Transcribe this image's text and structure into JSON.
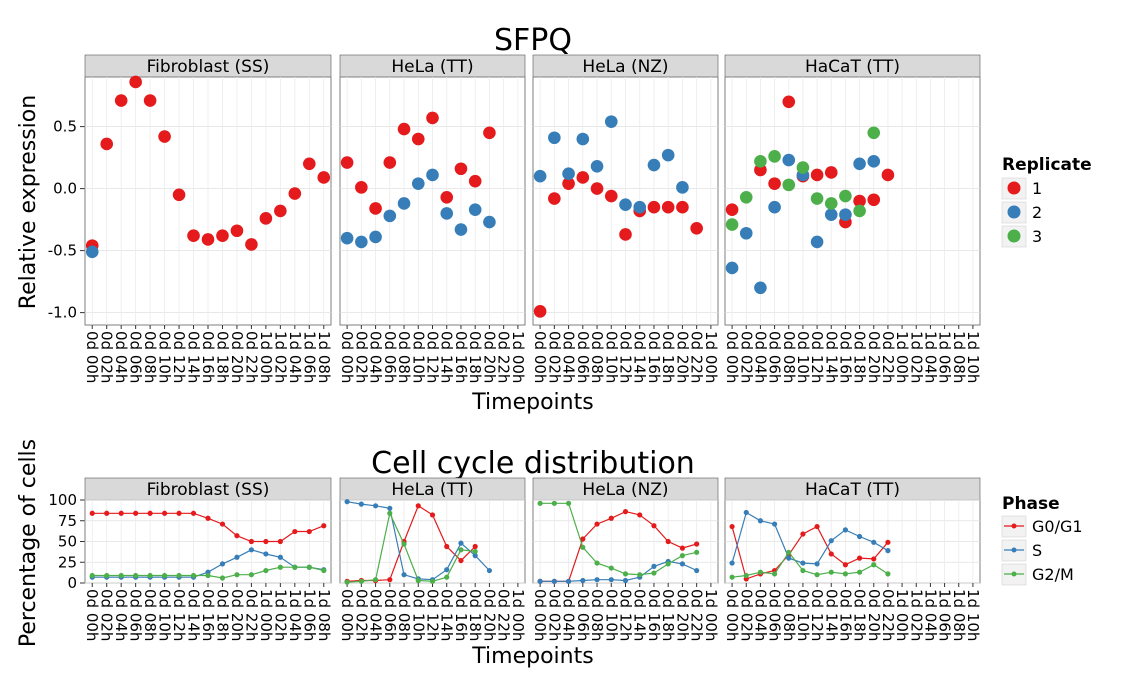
{
  "figure_title": "SFPQ",
  "chart_data": [
    {
      "type": "scatter",
      "title": "SFPQ",
      "xlabel": "Timepoints",
      "ylabel": "Relative expression",
      "ylim": [
        -1.1,
        0.9
      ],
      "yticks": [
        0.5,
        0.0,
        -0.5,
        -1.0
      ],
      "ytick_labels": [
        "0.5",
        "0.0",
        "-0.5",
        "-1.0"
      ],
      "legend": {
        "title": "Replicate",
        "position": "right",
        "entries": [
          {
            "label": "1",
            "color": "#e41a1c"
          },
          {
            "label": "2",
            "color": "#377eb8"
          },
          {
            "label": "3",
            "color": "#4daf4a"
          }
        ]
      },
      "grid": true,
      "panels": [
        {
          "label": "Fibroblast (SS)",
          "x": [
            "0d 00h",
            "0d 02h",
            "0d 04h",
            "0d 06h",
            "0d 08h",
            "0d 10h",
            "0d 12h",
            "0d 14h",
            "0d 16h",
            "0d 18h",
            "0d 20h",
            "0d 22h",
            "1d 00h",
            "1d 02h",
            "1d 04h",
            "1d 06h",
            "1d 08h"
          ],
          "series": [
            {
              "name": "1",
              "values": [
                -0.46,
                0.36,
                0.71,
                0.86,
                0.71,
                0.42,
                -0.05,
                -0.38,
                -0.41,
                -0.38,
                -0.34,
                -0.45,
                -0.24,
                -0.18,
                -0.04,
                0.2,
                0.09
              ]
            },
            {
              "name": "2",
              "values": [
                -0.51,
                null,
                null,
                null,
                null,
                null,
                null,
                null,
                null,
                null,
                null,
                null,
                null,
                null,
                null,
                null,
                null
              ]
            }
          ]
        },
        {
          "label": "HeLa (TT)",
          "x": [
            "0d 00h",
            "0d 02h",
            "0d 04h",
            "0d 06h",
            "0d 08h",
            "0d 10h",
            "0d 12h",
            "0d 14h",
            "0d 16h",
            "0d 18h",
            "0d 20h",
            "0d 22h",
            "1d 00h"
          ],
          "series": [
            {
              "name": "1",
              "values": [
                0.21,
                0.01,
                -0.16,
                0.21,
                0.48,
                0.4,
                0.57,
                -0.07,
                0.16,
                0.06,
                0.45,
                null,
                null
              ]
            },
            {
              "name": "2",
              "values": [
                -0.4,
                -0.43,
                -0.39,
                -0.22,
                -0.12,
                0.04,
                0.11,
                -0.2,
                -0.33,
                -0.17,
                -0.27,
                null,
                null
              ]
            }
          ]
        },
        {
          "label": "HeLa (NZ)",
          "x": [
            "0d 00h",
            "0d 02h",
            "0d 04h",
            "0d 06h",
            "0d 08h",
            "0d 10h",
            "0d 12h",
            "0d 14h",
            "0d 16h",
            "0d 18h",
            "0d 20h",
            "0d 22h",
            "1d 00h"
          ],
          "series": [
            {
              "name": "1",
              "values": [
                -0.99,
                -0.08,
                0.04,
                0.09,
                0.0,
                -0.06,
                -0.37,
                -0.18,
                -0.15,
                -0.15,
                -0.15,
                -0.32,
                null
              ]
            },
            {
              "name": "2",
              "values": [
                0.1,
                0.41,
                0.12,
                0.4,
                0.18,
                0.54,
                -0.13,
                -0.15,
                0.19,
                0.27,
                0.01,
                null,
                null
              ]
            }
          ]
        },
        {
          "label": "HaCaT (TT)",
          "x": [
            "0d 00h",
            "0d 02h",
            "0d 04h",
            "0d 06h",
            "0d 08h",
            "0d 10h",
            "0d 12h",
            "0d 14h",
            "0d 16h",
            "0d 18h",
            "0d 20h",
            "0d 22h",
            "1d 00h",
            "1d 02h",
            "1d 04h",
            "1d 06h",
            "1d 08h",
            "1d 10h"
          ],
          "series": [
            {
              "name": "1",
              "values": [
                -0.17,
                null,
                0.15,
                0.04,
                0.7,
                0.1,
                0.11,
                0.13,
                -0.27,
                -0.1,
                -0.09,
                0.11,
                null,
                null,
                null,
                null,
                null,
                null
              ]
            },
            {
              "name": "2",
              "values": [
                -0.64,
                -0.36,
                -0.8,
                -0.15,
                0.23,
                0.11,
                -0.43,
                -0.21,
                -0.21,
                0.2,
                0.22,
                null,
                null,
                null,
                null,
                null,
                null,
                null
              ]
            },
            {
              "name": "3",
              "values": [
                -0.29,
                -0.07,
                0.22,
                0.26,
                0.03,
                0.17,
                -0.08,
                -0.12,
                -0.06,
                -0.18,
                0.45,
                null,
                null,
                null,
                null,
                null,
                null,
                null
              ]
            }
          ]
        }
      ]
    },
    {
      "type": "line",
      "title": "Cell cycle distribution",
      "xlabel": "Timepoints",
      "ylabel": "Percentage of cells",
      "ylim": [
        0,
        100
      ],
      "yticks": [
        100,
        75,
        50,
        25,
        0
      ],
      "ytick_labels": [
        "100",
        "75",
        "50",
        "25",
        "0"
      ],
      "legend": {
        "title": "Phase",
        "position": "right",
        "entries": [
          {
            "label": "G0/G1",
            "color": "#e41a1c"
          },
          {
            "label": "S",
            "color": "#377eb8"
          },
          {
            "label": "G2/M",
            "color": "#4daf4a"
          }
        ]
      },
      "grid": true,
      "panels": [
        {
          "label": "Fibroblast (SS)",
          "x": [
            "0d 00h",
            "0d 02h",
            "0d 04h",
            "0d 06h",
            "0d 08h",
            "0d 10h",
            "0d 12h",
            "0d 14h",
            "0d 16h",
            "0d 18h",
            "0d 20h",
            "0d 22h",
            "1d 00h",
            "1d 02h",
            "1d 04h",
            "1d 06h",
            "1d 08h"
          ],
          "series": [
            {
              "name": "G0/G1",
              "values": [
                84,
                84,
                84,
                84,
                84,
                84,
                84,
                84,
                78,
                71,
                57,
                50,
                50,
                50,
                62,
                62,
                69
              ]
            },
            {
              "name": "S",
              "values": [
                7,
                7,
                7,
                7,
                7,
                7,
                7,
                7,
                13,
                23,
                31,
                40,
                35,
                31,
                19,
                19,
                16
              ]
            },
            {
              "name": "G2/M",
              "values": [
                9,
                9,
                9,
                9,
                9,
                9,
                9,
                9,
                9,
                6,
                10,
                10,
                15,
                19,
                19,
                19,
                15
              ]
            }
          ]
        },
        {
          "label": "HeLa (TT)",
          "x": [
            "0d 00h",
            "0d 02h",
            "0d 04h",
            "0d 06h",
            "0d 08h",
            "0d 10h",
            "0d 12h",
            "0d 14h",
            "0d 16h",
            "0d 18h",
            "0d 20h",
            "0d 22h",
            "1d 00h"
          ],
          "series": [
            {
              "name": "G0/G1",
              "values": [
                2,
                3,
                3,
                4,
                50,
                93,
                82,
                44,
                27,
                44,
                null,
                null,
                null
              ]
            },
            {
              "name": "S",
              "values": [
                98,
                95,
                93,
                90,
                10,
                5,
                4,
                16,
                48,
                33,
                15,
                null,
                null
              ]
            },
            {
              "name": "G2/M",
              "values": [
                1,
                2,
                4,
                84,
                47,
                3,
                2,
                7,
                40,
                38,
                null,
                null,
                null
              ]
            }
          ]
        },
        {
          "label": "HeLa (NZ)",
          "x": [
            "0d 00h",
            "0d 02h",
            "0d 04h",
            "0d 06h",
            "0d 08h",
            "0d 10h",
            "0d 12h",
            "0d 14h",
            "0d 16h",
            "0d 18h",
            "0d 20h",
            "0d 22h",
            "1d 00h"
          ],
          "series": [
            {
              "name": "G0/G1",
              "values": [
                2,
                2,
                2,
                53,
                71,
                78,
                86,
                82,
                69,
                50,
                42,
                47,
                null
              ]
            },
            {
              "name": "S",
              "values": [
                2,
                2,
                2,
                3,
                4,
                4,
                3,
                7,
                20,
                26,
                23,
                15,
                null
              ]
            },
            {
              "name": "G2/M",
              "values": [
                96,
                96,
                96,
                43,
                24,
                18,
                11,
                10,
                12,
                23,
                33,
                37,
                null
              ]
            }
          ]
        },
        {
          "label": "HaCaT (TT)",
          "x": [
            "0d 00h",
            "0d 02h",
            "0d 04h",
            "0d 06h",
            "0d 08h",
            "0d 10h",
            "0d 12h",
            "0d 14h",
            "0d 16h",
            "0d 18h",
            "0d 20h",
            "0d 22h",
            "1d 00h",
            "1d 02h",
            "1d 04h",
            "1d 06h",
            "1d 08h",
            "1d 10h"
          ],
          "series": [
            {
              "name": "G0/G1",
              "values": [
                68,
                5,
                11,
                15,
                34,
                59,
                68,
                35,
                22,
                30,
                29,
                49,
                null,
                null,
                null,
                null,
                null,
                null
              ]
            },
            {
              "name": "S",
              "values": [
                24,
                85,
                75,
                71,
                30,
                24,
                23,
                51,
                64,
                56,
                49,
                39,
                null,
                null,
                null,
                null,
                null,
                null
              ]
            },
            {
              "name": "G2/M",
              "values": [
                7,
                9,
                13,
                11,
                37,
                15,
                10,
                13,
                11,
                13,
                22,
                11,
                null,
                null,
                null,
                null,
                null,
                null
              ]
            }
          ]
        }
      ]
    }
  ]
}
